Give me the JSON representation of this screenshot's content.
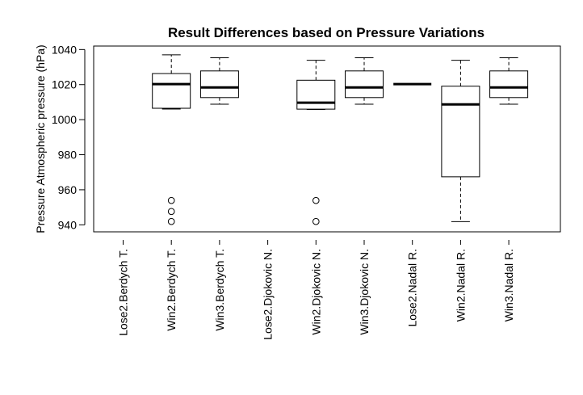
{
  "chart_data": {
    "type": "boxplot",
    "title": "Result Differences based on Pressure Variations",
    "xlabel": "",
    "ylabel": "Pressure Atmospheric pressure (hPa)",
    "ylim": [
      936,
      1042
    ],
    "yticks": [
      940,
      960,
      980,
      1000,
      1020,
      1040
    ],
    "grid": false,
    "legend": "none",
    "categories": [
      "Lose2.Berdych T.",
      "Win2.Berdych T.",
      "Win3.Berdych T.",
      "Lose2.Djokovic N.",
      "Win2.Djokovic N.",
      "Win3.Djokovic N.",
      "Lose2.Nadal R.",
      "Win2.Nadal R.",
      "Win3.Nadal R."
    ],
    "boxes": [
      null,
      {
        "whisker_low": 1006.5,
        "q1": 1006.5,
        "median": 1020.3,
        "q3": 1026.3,
        "whisker_high": 1037.0,
        "outliers": [
          953.9,
          947.6,
          941.9
        ]
      },
      {
        "whisker_low": 1008.8,
        "q1": 1012.6,
        "median": 1018.4,
        "q3": 1027.8,
        "whisker_high": 1035.3,
        "outliers": []
      },
      null,
      {
        "whisker_low": 1005.8,
        "q1": 1006.0,
        "median": 1009.7,
        "q3": 1022.5,
        "whisker_high": 1033.9,
        "outliers": [
          953.9,
          941.9
        ]
      },
      {
        "whisker_low": 1008.8,
        "q1": 1012.6,
        "median": 1018.4,
        "q3": 1027.8,
        "whisker_high": 1035.3,
        "outliers": []
      },
      {
        "whisker_low": 1020.3,
        "q1": 1020.3,
        "median": 1020.3,
        "q3": 1020.3,
        "whisker_high": 1020.3,
        "outliers": []
      },
      {
        "whisker_low": 941.8,
        "q1": 967.4,
        "median": 1008.7,
        "q3": 1019.1,
        "whisker_high": 1033.9,
        "outliers": []
      },
      {
        "whisker_low": 1008.8,
        "q1": 1012.6,
        "median": 1018.4,
        "q3": 1027.8,
        "whisker_high": 1035.3,
        "outliers": []
      }
    ]
  }
}
